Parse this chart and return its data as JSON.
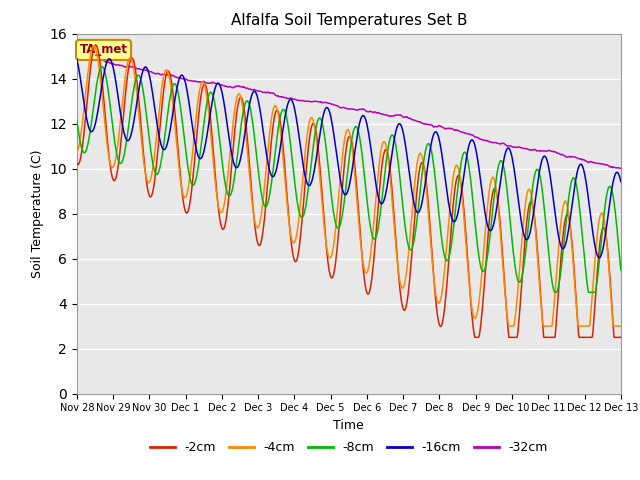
{
  "title": "Alfalfa Soil Temperatures Set B",
  "xlabel": "Time",
  "ylabel": "Soil Temperature (C)",
  "ylim": [
    0,
    16
  ],
  "yticks": [
    0,
    2,
    4,
    6,
    8,
    10,
    12,
    14,
    16
  ],
  "plot_bg_color": "#e8e8e8",
  "fig_bg_color": "#ffffff",
  "annotation_text": "TA_met",
  "annotation_bg": "#ffff99",
  "annotation_border": "#cc8800",
  "legend_labels": [
    "-2cm",
    "-4cm",
    "-8cm",
    "-16cm",
    "-32cm"
  ],
  "line_colors": [
    "#dd2200",
    "#ff8800",
    "#00bb00",
    "#0000cc",
    "#bb00bb"
  ],
  "xticklabels": [
    "Nov 28",
    "Nov 29",
    "Nov 30",
    "Dec 1",
    "Dec 2",
    "Dec 3",
    "Dec 4",
    "Dec 5",
    "Dec 6",
    "Dec 7",
    "Dec 8",
    "Dec 9",
    "Dec 10",
    "Dec 11",
    "Dec 12",
    "Dec 13"
  ],
  "n_points": 720
}
